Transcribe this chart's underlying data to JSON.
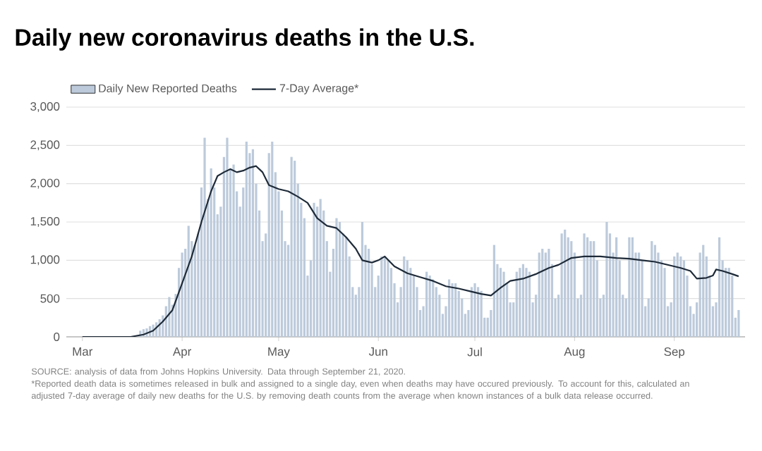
{
  "chart_data": {
    "type": "bar",
    "title": "Daily new coronavirus deaths in the U.S.",
    "x": [
      "2020-03-01",
      "2020-03-02",
      "2020-03-03",
      "2020-03-04",
      "2020-03-05",
      "2020-03-06",
      "2020-03-07",
      "2020-03-08",
      "2020-03-09",
      "2020-03-10",
      "2020-03-11",
      "2020-03-12",
      "2020-03-13",
      "2020-03-14",
      "2020-03-15",
      "2020-03-16",
      "2020-03-17",
      "2020-03-18",
      "2020-03-19",
      "2020-03-20",
      "2020-03-21",
      "2020-03-22",
      "2020-03-23",
      "2020-03-24",
      "2020-03-25",
      "2020-03-26",
      "2020-03-27",
      "2020-03-28",
      "2020-03-29",
      "2020-03-30",
      "2020-03-31",
      "2020-04-01",
      "2020-04-02",
      "2020-04-03",
      "2020-04-04",
      "2020-04-05",
      "2020-04-06",
      "2020-04-07",
      "2020-04-08",
      "2020-04-09",
      "2020-04-10",
      "2020-04-11",
      "2020-04-12",
      "2020-04-13",
      "2020-04-14",
      "2020-04-15",
      "2020-04-16",
      "2020-04-17",
      "2020-04-18",
      "2020-04-19",
      "2020-04-20",
      "2020-04-21",
      "2020-04-22",
      "2020-04-23",
      "2020-04-24",
      "2020-04-25",
      "2020-04-26",
      "2020-04-27",
      "2020-04-28",
      "2020-04-29",
      "2020-04-30",
      "2020-05-01",
      "2020-05-02",
      "2020-05-03",
      "2020-05-04",
      "2020-05-05",
      "2020-05-06",
      "2020-05-07",
      "2020-05-08",
      "2020-05-09",
      "2020-05-10",
      "2020-05-11",
      "2020-05-12",
      "2020-05-13",
      "2020-05-14",
      "2020-05-15",
      "2020-05-16",
      "2020-05-17",
      "2020-05-18",
      "2020-05-19",
      "2020-05-20",
      "2020-05-21",
      "2020-05-22",
      "2020-05-23",
      "2020-05-24",
      "2020-05-25",
      "2020-05-26",
      "2020-05-27",
      "2020-05-28",
      "2020-05-29",
      "2020-05-30",
      "2020-05-31",
      "2020-06-01",
      "2020-06-02",
      "2020-06-03",
      "2020-06-04",
      "2020-06-05",
      "2020-06-06",
      "2020-06-07",
      "2020-06-08",
      "2020-06-09",
      "2020-06-10",
      "2020-06-11",
      "2020-06-12",
      "2020-06-13",
      "2020-06-14",
      "2020-06-15",
      "2020-06-16",
      "2020-06-17",
      "2020-06-18",
      "2020-06-19",
      "2020-06-20",
      "2020-06-21",
      "2020-06-22",
      "2020-06-23",
      "2020-06-24",
      "2020-06-25",
      "2020-06-26",
      "2020-06-27",
      "2020-06-28",
      "2020-06-29",
      "2020-06-30",
      "2020-07-01",
      "2020-07-02",
      "2020-07-03",
      "2020-07-04",
      "2020-07-05",
      "2020-07-06",
      "2020-07-07",
      "2020-07-08",
      "2020-07-09",
      "2020-07-10",
      "2020-07-11",
      "2020-07-12",
      "2020-07-13",
      "2020-07-14",
      "2020-07-15",
      "2020-07-16",
      "2020-07-17",
      "2020-07-18",
      "2020-07-19",
      "2020-07-20",
      "2020-07-21",
      "2020-07-22",
      "2020-07-23",
      "2020-07-24",
      "2020-07-25",
      "2020-07-26",
      "2020-07-27",
      "2020-07-28",
      "2020-07-29",
      "2020-07-30",
      "2020-07-31",
      "2020-08-01",
      "2020-08-02",
      "2020-08-03",
      "2020-08-04",
      "2020-08-05",
      "2020-08-06",
      "2020-08-07",
      "2020-08-08",
      "2020-08-09",
      "2020-08-10",
      "2020-08-11",
      "2020-08-12",
      "2020-08-13",
      "2020-08-14",
      "2020-08-15",
      "2020-08-16",
      "2020-08-17",
      "2020-08-18",
      "2020-08-19",
      "2020-08-20",
      "2020-08-21",
      "2020-08-22",
      "2020-08-23",
      "2020-08-24",
      "2020-08-25",
      "2020-08-26",
      "2020-08-27",
      "2020-08-28",
      "2020-08-29",
      "2020-08-30",
      "2020-08-31",
      "2020-09-01",
      "2020-09-02",
      "2020-09-03",
      "2020-09-04",
      "2020-09-05",
      "2020-09-06",
      "2020-09-07",
      "2020-09-08",
      "2020-09-09",
      "2020-09-10",
      "2020-09-11",
      "2020-09-12",
      "2020-09-13",
      "2020-09-14",
      "2020-09-15",
      "2020-09-16",
      "2020-09-17",
      "2020-09-18",
      "2020-09-19",
      "2020-09-20",
      "2020-09-21"
    ],
    "series": [
      {
        "name": "Daily New Reported Deaths",
        "color": "#bccadb",
        "values": [
          0,
          0,
          0,
          0,
          0,
          0,
          0,
          0,
          0,
          0,
          0,
          0,
          0,
          0,
          0,
          0,
          0,
          0,
          80,
          100,
          110,
          140,
          160,
          190,
          230,
          280,
          400,
          520,
          420,
          560,
          900,
          1100,
          1150,
          1450,
          1250,
          1200,
          1350,
          1950,
          2600,
          1800,
          2200,
          1950,
          1600,
          1700,
          2350,
          2600,
          2200,
          2250,
          1900,
          1700,
          1950,
          2550,
          2400,
          2450,
          2000,
          1650,
          1250,
          1350,
          2400,
          2550,
          2150,
          1900,
          1650,
          1250,
          1200,
          2350,
          2300,
          2000,
          1750,
          1550,
          800,
          1000,
          1750,
          1700,
          1800,
          1650,
          1250,
          850,
          1150,
          1550,
          1500,
          1350,
          1300,
          1050,
          650,
          550,
          650,
          1500,
          1200,
          1150,
          950,
          650,
          800,
          1050,
          1050,
          1000,
          900,
          700,
          450,
          650,
          1050,
          1000,
          900,
          800,
          650,
          350,
          400,
          850,
          800,
          750,
          650,
          550,
          300,
          400,
          750,
          700,
          700,
          600,
          500,
          300,
          350,
          650,
          700,
          650,
          600,
          250,
          250,
          350,
          1200,
          950,
          900,
          850,
          700,
          450,
          450,
          850,
          900,
          950,
          900,
          850,
          450,
          550,
          1100,
          1150,
          1100,
          1150,
          950,
          500,
          550,
          1350,
          1400,
          1300,
          1250,
          1100,
          500,
          550,
          1350,
          1300,
          1250,
          1250,
          1000,
          500,
          550,
          1500,
          1350,
          1100,
          1300,
          1000,
          550,
          500,
          1300,
          1300,
          1100,
          1100,
          1000,
          400,
          500,
          1250,
          1200,
          1100,
          1000,
          900,
          400,
          450,
          1050,
          1100,
          1050,
          1000,
          800,
          400,
          300,
          450,
          1100,
          1200,
          1050,
          800,
          400,
          450,
          1300,
          1000,
          900,
          900,
          800,
          250,
          350
        ]
      },
      {
        "name": "7-Day Average*",
        "type": "line",
        "color": "#1e2a38",
        "x": [
          "2020-03-01",
          "2020-03-07",
          "2020-03-12",
          "2020-03-16",
          "2020-03-20",
          "2020-03-23",
          "2020-03-26",
          "2020-03-29",
          "2020-04-01",
          "2020-04-04",
          "2020-04-07",
          "2020-04-10",
          "2020-04-12",
          "2020-04-14",
          "2020-04-16",
          "2020-04-18",
          "2020-04-20",
          "2020-04-22",
          "2020-04-24",
          "2020-04-26",
          "2020-04-28",
          "2020-05-01",
          "2020-05-04",
          "2020-05-07",
          "2020-05-10",
          "2020-05-13",
          "2020-05-16",
          "2020-05-19",
          "2020-05-22",
          "2020-05-25",
          "2020-05-27",
          "2020-05-30",
          "2020-06-01",
          "2020-06-03",
          "2020-06-06",
          "2020-06-10",
          "2020-06-14",
          "2020-06-18",
          "2020-06-22",
          "2020-06-26",
          "2020-06-30",
          "2020-07-03",
          "2020-07-06",
          "2020-07-09",
          "2020-07-12",
          "2020-07-16",
          "2020-07-20",
          "2020-07-24",
          "2020-07-27",
          "2020-07-31",
          "2020-08-04",
          "2020-08-09",
          "2020-08-14",
          "2020-08-18",
          "2020-08-22",
          "2020-08-26",
          "2020-08-30",
          "2020-09-03",
          "2020-09-06",
          "2020-09-08",
          "2020-09-11",
          "2020-09-13",
          "2020-09-14",
          "2020-09-16",
          "2020-09-19",
          "2020-09-21"
        ],
        "values": [
          0,
          0,
          0,
          0,
          30,
          80,
          200,
          350,
          700,
          1050,
          1500,
          1900,
          2100,
          2150,
          2190,
          2150,
          2170,
          2210,
          2230,
          2150,
          1980,
          1930,
          1900,
          1830,
          1750,
          1550,
          1450,
          1420,
          1300,
          1150,
          1000,
          970,
          1000,
          1050,
          920,
          830,
          780,
          730,
          660,
          630,
          590,
          560,
          540,
          640,
          730,
          760,
          820,
          900,
          940,
          1030,
          1050,
          1050,
          1030,
          1020,
          1000,
          980,
          940,
          900,
          860,
          760,
          770,
          800,
          880,
          860,
          820,
          790
        ]
      }
    ],
    "xlim": [
      "2020-02-25",
      "2020-09-23"
    ],
    "xticks": [
      {
        "value": "2020-03-01",
        "label": "Mar"
      },
      {
        "value": "2020-04-01",
        "label": "Apr"
      },
      {
        "value": "2020-05-01",
        "label": "May"
      },
      {
        "value": "2020-06-01",
        "label": "Jun"
      },
      {
        "value": "2020-07-01",
        "label": "Jul"
      },
      {
        "value": "2020-08-01",
        "label": "Aug"
      },
      {
        "value": "2020-09-01",
        "label": "Sep"
      }
    ],
    "ylim": [
      0,
      3000
    ],
    "yticks": [
      0,
      500,
      {
        "value": 1000,
        "label": "1,000"
      },
      {
        "value": 1500,
        "label": "1,500"
      },
      {
        "value": 2000,
        "label": "2,000"
      },
      {
        "value": 2500,
        "label": "2,500"
      },
      {
        "value": 3000,
        "label": "3,000"
      }
    ],
    "grid": "y",
    "legend": "top left",
    "annotations": [
      "SOURCE: analysis of data from Johns Hopkins University. Data through September 21, 2020.",
      "*Reported death data is sometimes released in bulk and assigned to a single day, even when deaths may have occured previously. To account for this, calculated an adjusted 7-day average of daily new deaths for the U.S. by removing death counts from the average when known instances of a bulk data release occurred."
    ]
  }
}
